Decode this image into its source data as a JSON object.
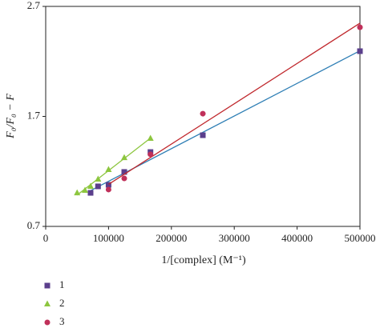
{
  "chart_data": {
    "type": "scatter",
    "x_label": "1/[complex] (M⁻¹)",
    "y_label": "F₀/F₀ − F",
    "xlim": [
      0,
      500000
    ],
    "xticks": [
      0,
      100000,
      200000,
      300000,
      400000,
      500000
    ],
    "ylim": [
      0.7,
      2.7
    ],
    "yticks": [
      0.7,
      1.7,
      2.7
    ],
    "trendlines": true,
    "series": [
      {
        "name": "1",
        "marker": "square",
        "color": "#5b3f8c",
        "line_color": "#2f7fb5",
        "x": [
          71400,
          83300,
          100000,
          125000,
          166700,
          250000,
          500000
        ],
        "values": [
          1.005,
          1.064,
          1.078,
          1.195,
          1.376,
          1.529,
          2.293
        ]
      },
      {
        "name": "2",
        "marker": "triangle",
        "color": "#8dc63f",
        "line_color": "#8dc63f",
        "x": [
          50000,
          62500,
          71400,
          83300,
          100000,
          125000,
          166700
        ],
        "values": [
          1.005,
          1.027,
          1.064,
          1.129,
          1.216,
          1.325,
          1.5
        ]
      },
      {
        "name": "3",
        "marker": "circle",
        "color": "#c0305a",
        "line_color": "#c0282d",
        "x": [
          100000,
          125000,
          166700,
          250000,
          500000
        ],
        "values": [
          1.035,
          1.136,
          1.355,
          1.725,
          2.51
        ]
      }
    ]
  }
}
